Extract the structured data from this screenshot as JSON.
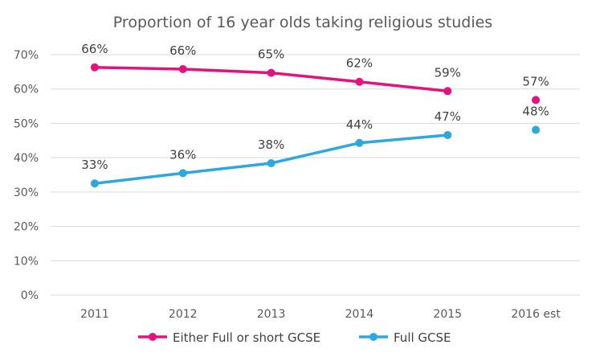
{
  "chart_data": {
    "type": "line",
    "title": "Proportion of 16 year olds taking religious studies",
    "categories": [
      "2011",
      "2012",
      "2013",
      "2014",
      "2015",
      "2016 est"
    ],
    "y_ticks": [
      "0%",
      "10%",
      "20%",
      "30%",
      "40%",
      "50%",
      "60%",
      "70%"
    ],
    "ylim": [
      0,
      70
    ],
    "grid": true,
    "legend_position": "bottom",
    "series": [
      {
        "name": "Either Full or short GCSE",
        "color": "#e3127f",
        "values": [
          66.3,
          65.8,
          64.7,
          62.1,
          59.4,
          56.8
        ],
        "labels": [
          "66%",
          "66%",
          "65%",
          "62%",
          "59%",
          "57%"
        ],
        "connected_until": 4
      },
      {
        "name": "Full GCSE",
        "color": "#2ca8df",
        "values": [
          32.5,
          35.5,
          38.4,
          44.3,
          46.6,
          48.1
        ],
        "labels": [
          "33%",
          "36%",
          "38%",
          "44%",
          "47%",
          "48%"
        ],
        "connected_until": 4
      }
    ]
  }
}
